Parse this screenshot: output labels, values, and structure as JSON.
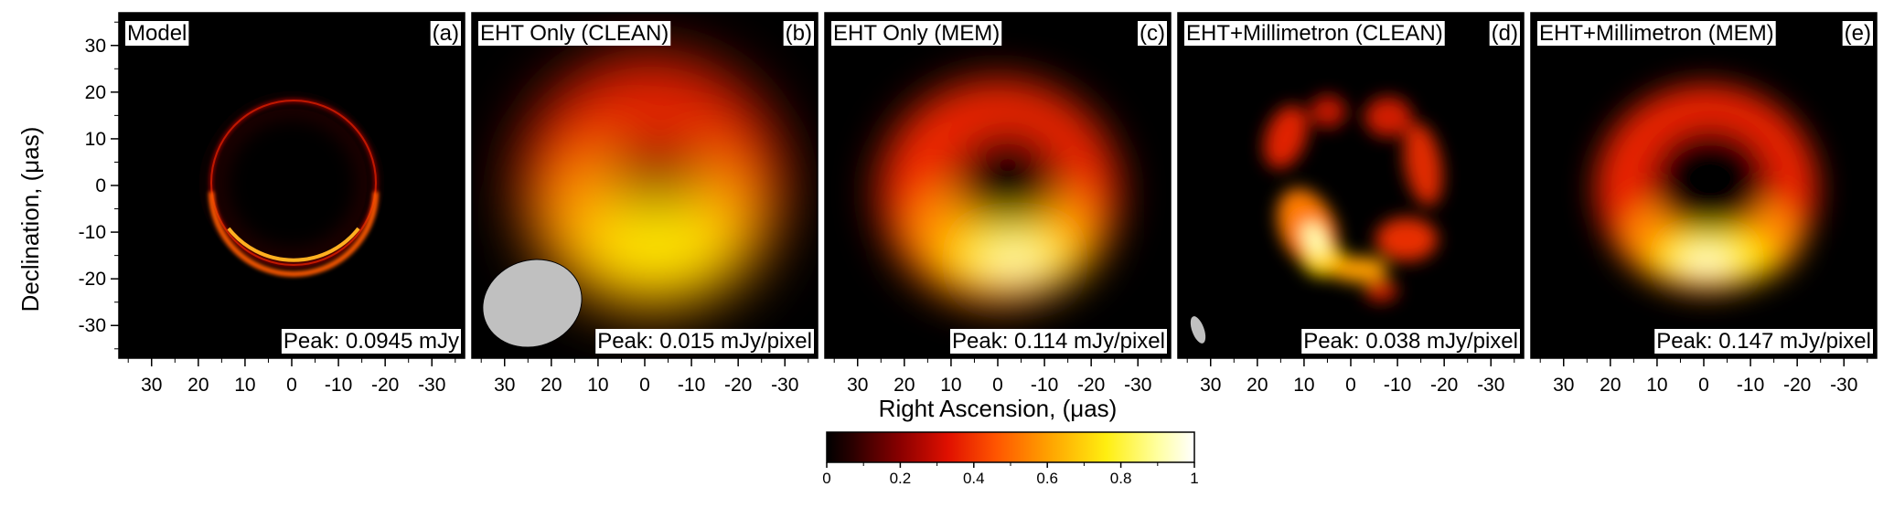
{
  "figure": {
    "xlabel": "Right Ascension, (μas)",
    "ylabel": "Declination, (μas)"
  },
  "colors": {
    "scale": [
      "#000000",
      "#2a0000",
      "#8a0000",
      "#e01000",
      "#ff5500",
      "#ffa000",
      "#ffee10",
      "#ffffa0",
      "#ffffff"
    ],
    "beam": "#c0c0c0"
  },
  "colorbar": {
    "ticks": [
      "0",
      "0.2",
      "0.4",
      "0.6",
      "0.8",
      "1"
    ],
    "values": [
      0,
      0.2,
      0.4,
      0.6,
      0.8,
      1
    ]
  },
  "chart_data": [
    {
      "type": "heatmap",
      "panel": "a",
      "title": "Model",
      "letter": "(a)",
      "peak": "Peak: 0.0945 mJy",
      "xlim": [
        37,
        -37
      ],
      "ylim": [
        -37,
        37
      ],
      "xticks": [
        30,
        20,
        10,
        0,
        -10,
        -20,
        -30
      ],
      "yticks": [
        30,
        20,
        10,
        0,
        -10,
        -20,
        -30
      ],
      "ring": {
        "center": [
          0,
          0
        ],
        "radius_uas": 17.5,
        "width_uas": 1.5,
        "bright_side": "bottom"
      },
      "beam": null
    },
    {
      "type": "heatmap",
      "panel": "b",
      "title": "EHT Only (CLEAN)",
      "letter": "(b)",
      "peak": "Peak: 0.015 mJy/pixel",
      "xlim": [
        37,
        -37
      ],
      "ylim": [
        -37,
        37
      ],
      "xticks": [
        30,
        20,
        10,
        0,
        -10,
        -20,
        -30
      ],
      "ring": {
        "center": [
          0,
          -2
        ],
        "radius_uas": 12,
        "width_uas": 14,
        "bright_side": "bottom"
      },
      "beam": {
        "center": [
          25,
          -26
        ],
        "size_uas": [
          22,
          18
        ],
        "angle_deg": -20
      }
    },
    {
      "type": "heatmap",
      "panel": "c",
      "title": "EHT Only (MEM)",
      "letter": "(c)",
      "peak": "Peak: 0.114 mJy/pixel",
      "xlim": [
        37,
        -37
      ],
      "ylim": [
        -37,
        37
      ],
      "xticks": [
        30,
        20,
        10,
        0,
        -10,
        -20,
        -30
      ],
      "ring": {
        "center": [
          0,
          -3
        ],
        "radius_uas": 14,
        "width_uas": 9,
        "bright_side": "bottom"
      },
      "beam": null
    },
    {
      "type": "heatmap",
      "panel": "d",
      "title": "EHT+Millimetron (CLEAN)",
      "letter": "(d)",
      "peak": "Peak: 0.038 mJy/pixel",
      "xlim": [
        37,
        -37
      ],
      "ylim": [
        -37,
        37
      ],
      "xticks": [
        30,
        20,
        10,
        0,
        -10,
        -20,
        -30
      ],
      "ring": {
        "center": [
          0,
          -2
        ],
        "radius_uas": 15,
        "width_uas": 5,
        "bright_side": "bottom"
      },
      "beam": {
        "center": [
          32,
          -31
        ],
        "size_uas": [
          2.5,
          6
        ],
        "angle_deg": -20
      }
    },
    {
      "type": "heatmap",
      "panel": "e",
      "title": "EHT+Millimetron (MEM)",
      "letter": "(e)",
      "peak": "Peak: 0.147 mJy/pixel",
      "xlim": [
        37,
        -37
      ],
      "ylim": [
        -37,
        37
      ],
      "xticks": [
        30,
        20,
        10,
        0,
        -10,
        -20,
        -30
      ],
      "ring": {
        "center": [
          0,
          -2
        ],
        "radius_uas": 15,
        "width_uas": 6,
        "bright_side": "bottom"
      },
      "beam": null
    }
  ]
}
